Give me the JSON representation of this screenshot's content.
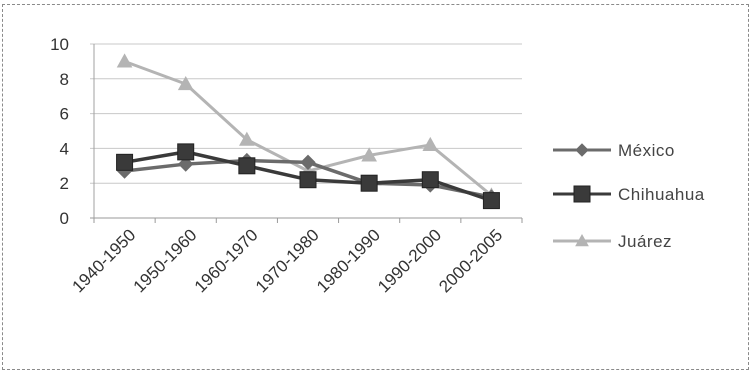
{
  "chart_data": {
    "type": "line",
    "categories": [
      "1940-1950",
      "1950-1960",
      "1960-1970",
      "1970-1980",
      "1980-1990",
      "1990-2000",
      "2000-2005"
    ],
    "ylim": [
      0,
      10
    ],
    "yticks": [
      0,
      2,
      4,
      6,
      8,
      10
    ],
    "grid": true,
    "legend_position": "right",
    "series": [
      {
        "name": "México",
        "values": [
          2.7,
          3.1,
          3.3,
          3.2,
          2.0,
          1.9,
          1.2
        ],
        "color": "#6b6b6b",
        "marker": "diamond"
      },
      {
        "name": "Chihuahua",
        "values": [
          3.2,
          3.8,
          3.0,
          2.2,
          2.0,
          2.2,
          1.0
        ],
        "color": "#3a3a3a",
        "marker": "square"
      },
      {
        "name": "Juárez",
        "values": [
          9.0,
          7.7,
          4.5,
          2.7,
          3.6,
          4.2,
          1.3
        ],
        "color": "#b4b4b4",
        "marker": "triangle"
      }
    ]
  }
}
